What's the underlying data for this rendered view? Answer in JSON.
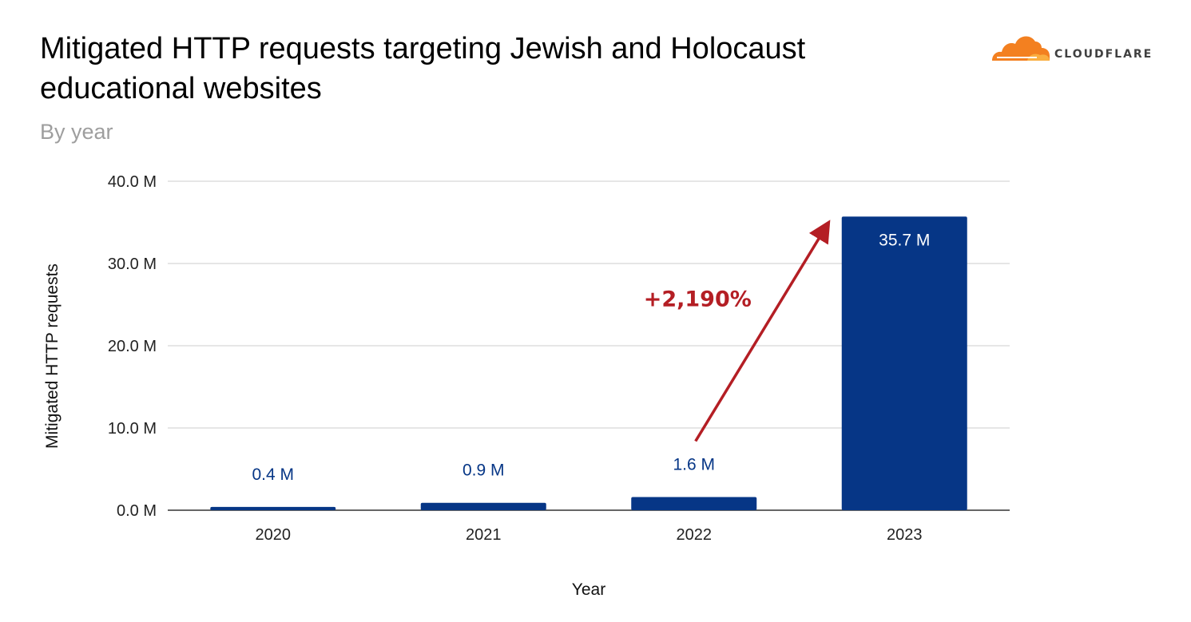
{
  "header": {
    "title": "Mitigated HTTP requests targeting Jewish and Holocaust educational websites",
    "subtitle": "By year"
  },
  "logo": {
    "text": "CLOUDFLARE",
    "icon": "cloud-icon",
    "color": "#f38020"
  },
  "chart_data": {
    "type": "bar",
    "categories": [
      "2020",
      "2021",
      "2022",
      "2023"
    ],
    "values": [
      0.4,
      0.9,
      1.6,
      35.7
    ],
    "data_labels": [
      "0.4 M",
      "0.9 M",
      "1.6 M",
      "35.7 M"
    ],
    "xlabel": "Year",
    "ylabel": "Mitigated HTTP requests",
    "ylim": [
      0,
      40
    ],
    "yticks": [
      0,
      10,
      20,
      30,
      40
    ],
    "ytick_labels": [
      "0.0 M",
      "10.0 M",
      "20.0 M",
      "30.0 M",
      "40.0 M"
    ],
    "grid": true,
    "bar_color": "#063686",
    "annotation": {
      "text": "+2,190%",
      "color": "#b41e24",
      "from_category": "2022",
      "to_category": "2023"
    }
  }
}
